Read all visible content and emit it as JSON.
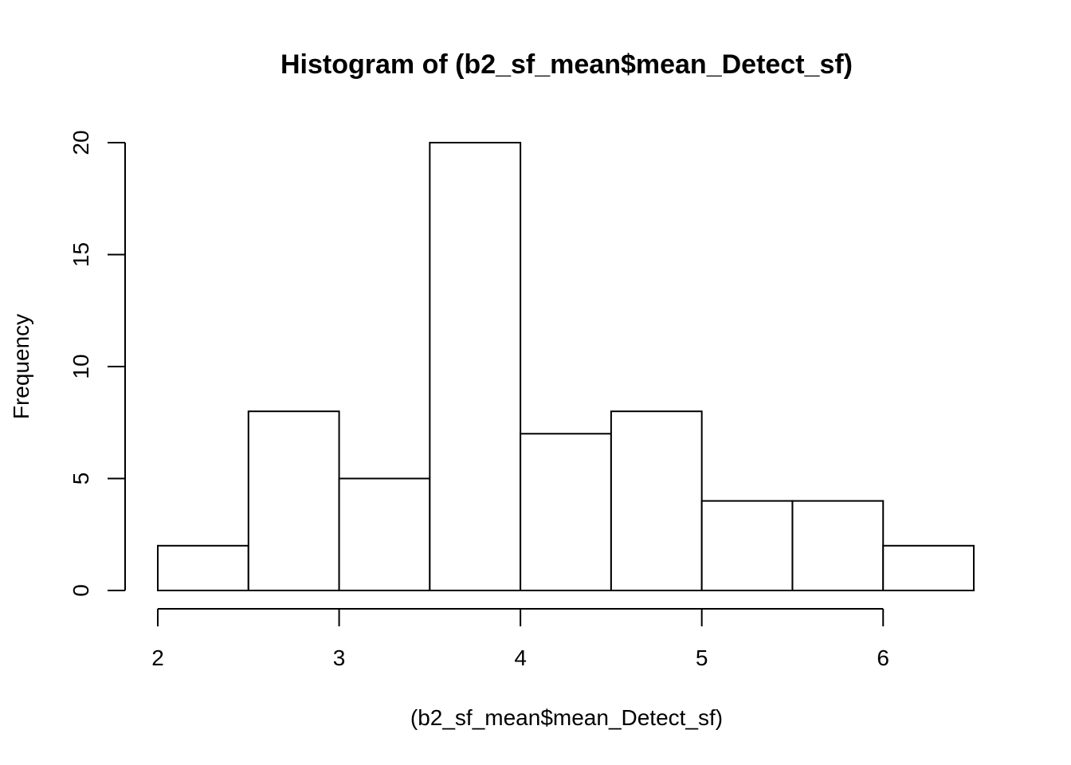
{
  "chart_data": {
    "type": "bar",
    "title": "Histogram of (b2_sf_mean$mean_Detect_sf)",
    "xlabel": "(b2_sf_mean$mean_Detect_sf)",
    "ylabel": "Frequency",
    "bins": [
      {
        "start": 2.0,
        "end": 2.5,
        "count": 2
      },
      {
        "start": 2.5,
        "end": 3.0,
        "count": 8
      },
      {
        "start": 3.0,
        "end": 3.5,
        "count": 5
      },
      {
        "start": 3.5,
        "end": 4.0,
        "count": 20
      },
      {
        "start": 4.0,
        "end": 4.5,
        "count": 7
      },
      {
        "start": 4.5,
        "end": 5.0,
        "count": 8
      },
      {
        "start": 5.0,
        "end": 5.5,
        "count": 4
      },
      {
        "start": 5.5,
        "end": 6.0,
        "count": 4
      },
      {
        "start": 6.0,
        "end": 6.5,
        "count": 2
      }
    ],
    "xticks": [
      "2",
      "3",
      "4",
      "5",
      "6"
    ],
    "yticks": [
      "0",
      "5",
      "10",
      "15",
      "20"
    ],
    "xlim": [
      2,
      6.5
    ],
    "ylim": [
      0,
      20
    ],
    "grid": false,
    "colors": {
      "bar_fill": "#ffffff",
      "bar_stroke": "#000000"
    }
  }
}
